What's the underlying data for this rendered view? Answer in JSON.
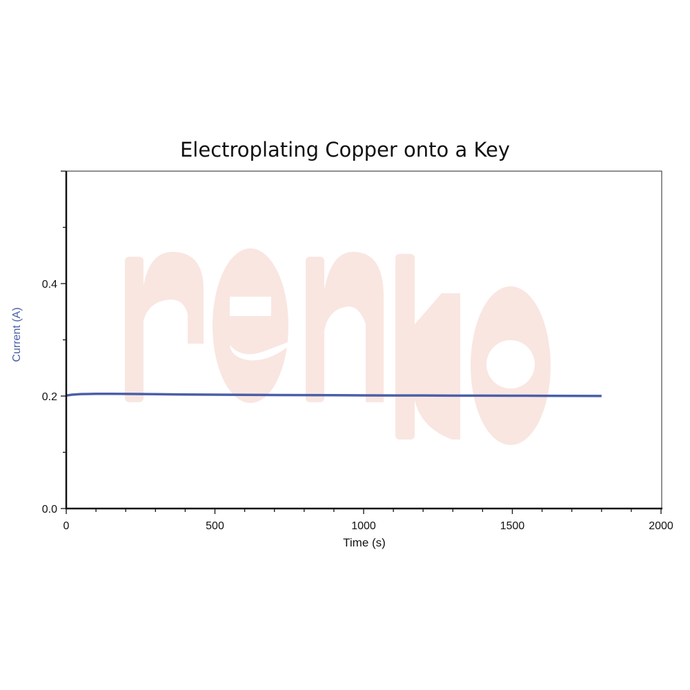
{
  "chart_data": {
    "type": "line",
    "title": "Electroplating Copper onto a Key",
    "xlabel": "Time (s)",
    "ylabel": "Current (A)",
    "xlim": [
      0,
      2000
    ],
    "ylim": [
      0,
      0.6
    ],
    "xticks": [
      "0",
      "500",
      "1000",
      "1500",
      "2000"
    ],
    "yticks": [
      "0.0",
      "0.2",
      "0.4"
    ],
    "x_minor_step": 100,
    "y_minor_step": 0.1,
    "grid": false,
    "series": [
      {
        "color": "#4a5fa8",
        "x": [
          0,
          20,
          50,
          100,
          150,
          200,
          300,
          400,
          500,
          600,
          700,
          800,
          900,
          1000,
          1100,
          1200,
          1300,
          1400,
          1500,
          1600,
          1700,
          1800
        ],
        "y": [
          0.201,
          0.2025,
          0.2035,
          0.204,
          0.204,
          0.2038,
          0.2033,
          0.2028,
          0.2024,
          0.2021,
          0.2019,
          0.2017,
          0.2015,
          0.2013,
          0.2011,
          0.201,
          0.2008,
          0.2007,
          0.2006,
          0.2005,
          0.2003,
          0.2002
        ]
      }
    ]
  },
  "colors": {
    "ylabel": "#4a5fa8",
    "watermark": "#f9e6e1"
  },
  "watermark": {
    "text": "renko"
  }
}
